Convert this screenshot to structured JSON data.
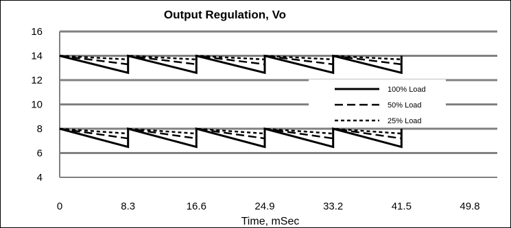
{
  "chart_data": {
    "type": "line",
    "title": "Output Regulation, Vo",
    "xlabel": "Time, mSec",
    "ylabel": "",
    "xlim": [
      0,
      49.8
    ],
    "ylim": [
      4,
      16
    ],
    "x_ticks": [
      "0",
      "8.3",
      "16.6",
      "24.9",
      "33.2",
      "41.5",
      "49.8"
    ],
    "y_ticks": [
      "4",
      "6",
      "8",
      "10",
      "12",
      "14",
      "16"
    ],
    "grid": "horizontal",
    "legend_position": "right",
    "series": [
      {
        "name": "100% Load",
        "style": "solid",
        "x": [
          0,
          8.3,
          8.3,
          16.6,
          16.6,
          24.9,
          24.9,
          33.2,
          33.2,
          41.5,
          41.5
        ],
        "y_upper": [
          14,
          12.6,
          14,
          12.6,
          14,
          12.6,
          14,
          12.6,
          14,
          12.6,
          14
        ],
        "y_lower": [
          8,
          6.5,
          8,
          6.5,
          8,
          6.5,
          8,
          6.5,
          8,
          6.5,
          8
        ]
      },
      {
        "name": "50% Load",
        "style": "dashed",
        "x": [
          0,
          8.3,
          8.3,
          16.6,
          16.6,
          24.9,
          24.9,
          33.2,
          33.2,
          41.5,
          41.5
        ],
        "y_upper": [
          14,
          13.3,
          14,
          13.3,
          14,
          13.3,
          14,
          13.3,
          14,
          13.3,
          14
        ],
        "y_lower": [
          8,
          7.2,
          8,
          7.2,
          8,
          7.2,
          8,
          7.2,
          8,
          7.2,
          8
        ]
      },
      {
        "name": "25% Load",
        "style": "dotted",
        "x": [
          0,
          8.3,
          8.3,
          16.6,
          16.6,
          24.9,
          24.9,
          33.2,
          33.2,
          41.5,
          41.5
        ],
        "y_upper": [
          14,
          13.7,
          14,
          13.7,
          14,
          13.7,
          14,
          13.7,
          14,
          13.7,
          14
        ],
        "y_lower": [
          8,
          7.6,
          8,
          7.6,
          8,
          7.6,
          8,
          7.6,
          8,
          7.6,
          8
        ]
      }
    ]
  },
  "colors": {
    "line": "#000000",
    "grid": "#808080",
    "border": "#000000",
    "background": "#ffffff"
  }
}
